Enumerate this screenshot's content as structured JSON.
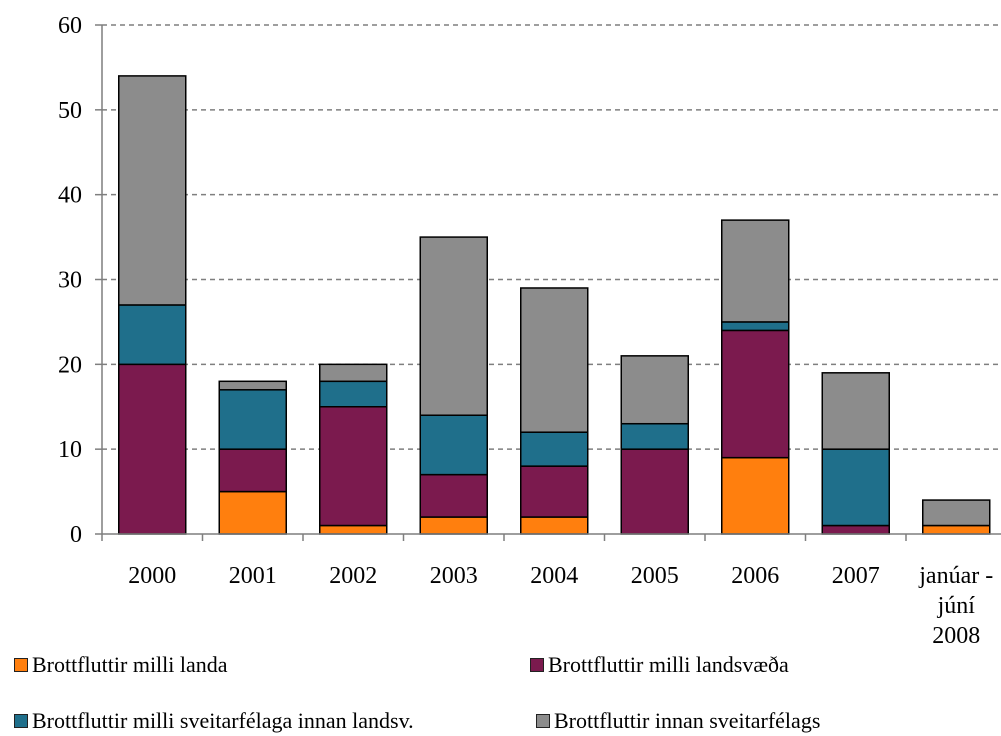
{
  "chart_data": {
    "type": "bar",
    "stacked": true,
    "categories": [
      "2000",
      "2001",
      "2002",
      "2003",
      "2004",
      "2005",
      "2006",
      "2007",
      "janúar - júní 2008"
    ],
    "category_lines": [
      [
        "2000"
      ],
      [
        "2001"
      ],
      [
        "2002"
      ],
      [
        "2003"
      ],
      [
        "2004"
      ],
      [
        "2005"
      ],
      [
        "2006"
      ],
      [
        "2007"
      ],
      [
        "janúar -",
        "júní",
        "2008"
      ]
    ],
    "series": [
      {
        "name": "Brottfluttir milli landa",
        "color": "#ff7f0e",
        "values": [
          0,
          5,
          1,
          2,
          2,
          0,
          9,
          0,
          1
        ]
      },
      {
        "name": "Brottfluttir milli landsvæða",
        "color": "#7b1a4e",
        "values": [
          20,
          5,
          14,
          5,
          6,
          10,
          15,
          1,
          0
        ]
      },
      {
        "name": "Brottfluttir milli sveitarfélaga innan landsv.",
        "color": "#1f6f8b",
        "values": [
          7,
          7,
          3,
          7,
          4,
          3,
          1,
          9,
          0
        ]
      },
      {
        "name": "Brottfluttir innan sveitarfélags",
        "color": "#8c8c8c",
        "values": [
          27,
          1,
          2,
          21,
          17,
          8,
          12,
          9,
          3
        ]
      }
    ],
    "ylim": [
      0,
      60
    ],
    "yticks": [
      0,
      10,
      20,
      30,
      40,
      50,
      60
    ],
    "grid": true,
    "legend_position": "bottom"
  }
}
